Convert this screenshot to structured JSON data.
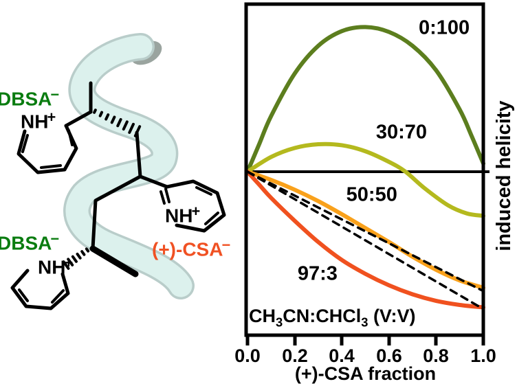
{
  "molecule": {
    "label_dbsa_top": {
      "base": "DBSA",
      "sup": "−"
    },
    "label_dbsa_bottom": {
      "base": "DBSA",
      "sup": "−"
    },
    "label_csa": {
      "base": "(+)-CSA",
      "sup": "−"
    },
    "label_nh": {
      "base": "NH",
      "sup": "+"
    },
    "colors": {
      "dbsa_green": "#0a7c10",
      "csa_orange": "#f05123",
      "ribbon": "#dcf1ed",
      "ribbon_edge": "#b9cdca",
      "shadow_gray": "#9aa49f",
      "bond_black": "#000000"
    }
  },
  "chart_data": {
    "type": "line",
    "title": "",
    "xlabel": "(+)-CSA fraction",
    "ylabel": "induced helicity",
    "xlim": [
      0.0,
      1.0
    ],
    "ylim": [
      -1.0,
      1.0
    ],
    "x_ticks": [
      "0.0",
      "0.2",
      "0.4",
      "0.6",
      "0.8",
      "1.0"
    ],
    "grid": false,
    "zero_line": true,
    "legend_position": "inline-annotations",
    "annotation": {
      "p1": "CH",
      "s1": "3",
      "p2": "CN:CHCl",
      "s2": "3",
      "p3": " (V:V)"
    },
    "series": [
      {
        "name": "0:100",
        "color": "#5c7e1e",
        "width": 6,
        "style": "solid",
        "points": [
          [
            0,
            0
          ],
          [
            0.05,
            0.17
          ],
          [
            0.1,
            0.34
          ],
          [
            0.2,
            0.6
          ],
          [
            0.3,
            0.77
          ],
          [
            0.4,
            0.86
          ],
          [
            0.5,
            0.885
          ],
          [
            0.6,
            0.855
          ],
          [
            0.7,
            0.77
          ],
          [
            0.8,
            0.62
          ],
          [
            0.9,
            0.38
          ],
          [
            0.95,
            0.22
          ],
          [
            1,
            0.05
          ]
        ]
      },
      {
        "name": "30:70",
        "color": "#b4b91e",
        "width": 6,
        "style": "solid",
        "points": [
          [
            0,
            0
          ],
          [
            0.1,
            0.09
          ],
          [
            0.2,
            0.145
          ],
          [
            0.3,
            0.168
          ],
          [
            0.4,
            0.162
          ],
          [
            0.5,
            0.125
          ],
          [
            0.6,
            0.06
          ],
          [
            0.67,
            0
          ],
          [
            0.75,
            -0.1
          ],
          [
            0.85,
            -0.205
          ],
          [
            0.93,
            -0.255
          ],
          [
            1,
            -0.27
          ]
        ]
      },
      {
        "name": "50:50",
        "color": "#f9a11b",
        "width": 6,
        "style": "solid",
        "points": [
          [
            0,
            0
          ],
          [
            0.1,
            -0.05
          ],
          [
            0.2,
            -0.11
          ],
          [
            0.3,
            -0.18
          ],
          [
            0.4,
            -0.26
          ],
          [
            0.5,
            -0.345
          ],
          [
            0.6,
            -0.43
          ],
          [
            0.7,
            -0.52
          ],
          [
            0.8,
            -0.6
          ],
          [
            0.9,
            -0.665
          ],
          [
            1,
            -0.71
          ]
        ]
      },
      {
        "name": "97:3",
        "color": "#f0511f",
        "width": 6,
        "style": "solid",
        "points": [
          [
            0,
            0
          ],
          [
            0.05,
            -0.08
          ],
          [
            0.1,
            -0.16
          ],
          [
            0.2,
            -0.3
          ],
          [
            0.3,
            -0.43
          ],
          [
            0.4,
            -0.54
          ],
          [
            0.5,
            -0.625
          ],
          [
            0.6,
            -0.695
          ],
          [
            0.7,
            -0.75
          ],
          [
            0.8,
            -0.79
          ],
          [
            0.9,
            -0.815
          ],
          [
            1,
            -0.83
          ]
        ]
      },
      {
        "name": "linear-guide-upper",
        "color": "#000000",
        "width": 3.5,
        "style": "dashed",
        "points": [
          [
            0,
            0
          ],
          [
            1,
            -0.73
          ]
        ]
      },
      {
        "name": "linear-guide-lower",
        "color": "#000000",
        "width": 3.5,
        "style": "dashed",
        "points": [
          [
            0,
            0
          ],
          [
            1,
            -0.84
          ]
        ]
      }
    ],
    "series_labels": [
      {
        "text": "0:100",
        "x": 0.834,
        "y": 0.878
      },
      {
        "text": "30:70",
        "x": 0.653,
        "y": 0.24
      },
      {
        "text": "50:50",
        "x": 0.527,
        "y": -0.143
      },
      {
        "text": "97:3",
        "x": 0.297,
        "y": -0.626
      }
    ]
  }
}
